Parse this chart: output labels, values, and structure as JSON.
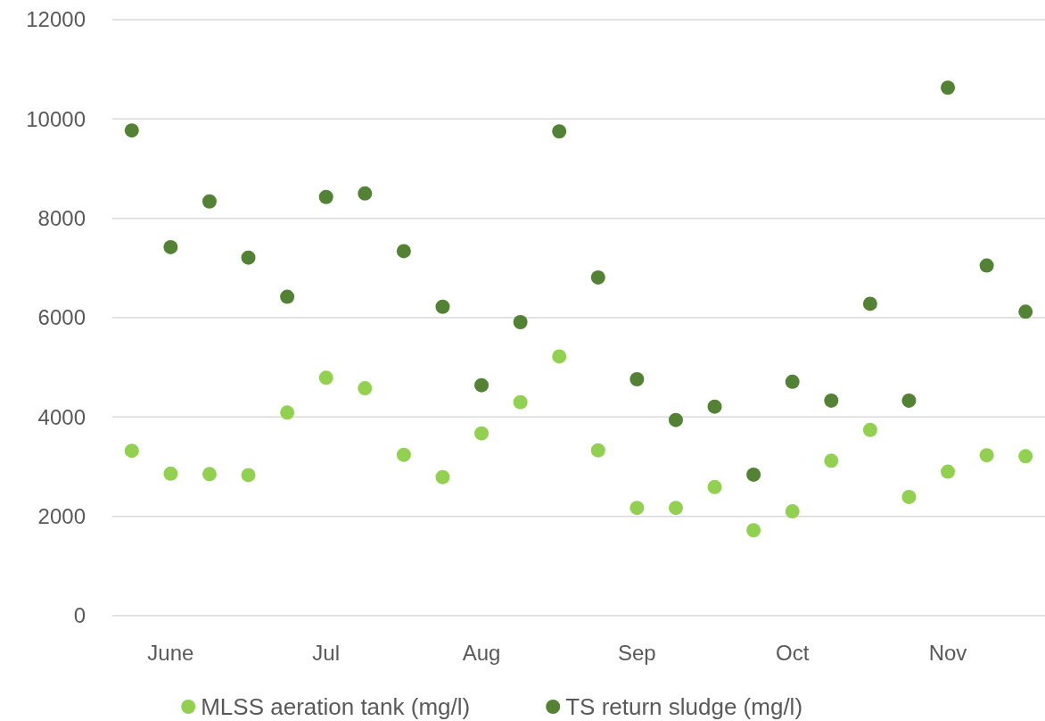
{
  "chart_data": {
    "type": "scatter",
    "categories": [
      null,
      "June",
      null,
      null,
      null,
      "Jul",
      null,
      null,
      null,
      "Aug",
      null,
      null,
      null,
      "Sep",
      null,
      null,
      null,
      "Oct",
      null,
      null,
      null,
      "Nov",
      null,
      null
    ],
    "series": [
      {
        "name": "MLSS aeration tank (mg/l)",
        "color": "#92d050",
        "values": [
          3320,
          2860,
          2850,
          2830,
          4090,
          4790,
          4580,
          3240,
          2790,
          3670,
          4300,
          5220,
          3330,
          2170,
          2170,
          2590,
          1720,
          2100,
          3120,
          3740,
          2390,
          2900,
          3230,
          3210
        ]
      },
      {
        "name": "TS return sludge (mg/l)",
        "color": "#548235",
        "values": [
          9770,
          7420,
          8340,
          7210,
          6420,
          8430,
          8500,
          7340,
          6220,
          4640,
          5910,
          9750,
          6810,
          4760,
          3940,
          4210,
          2840,
          4710,
          4330,
          6280,
          4330,
          10630,
          7050,
          6120
        ]
      }
    ],
    "ylim": [
      0,
      12000
    ],
    "yticks": [
      0,
      2000,
      4000,
      6000,
      8000,
      10000,
      12000
    ],
    "grid": "y",
    "legend": "bottom",
    "marker": "circle"
  }
}
